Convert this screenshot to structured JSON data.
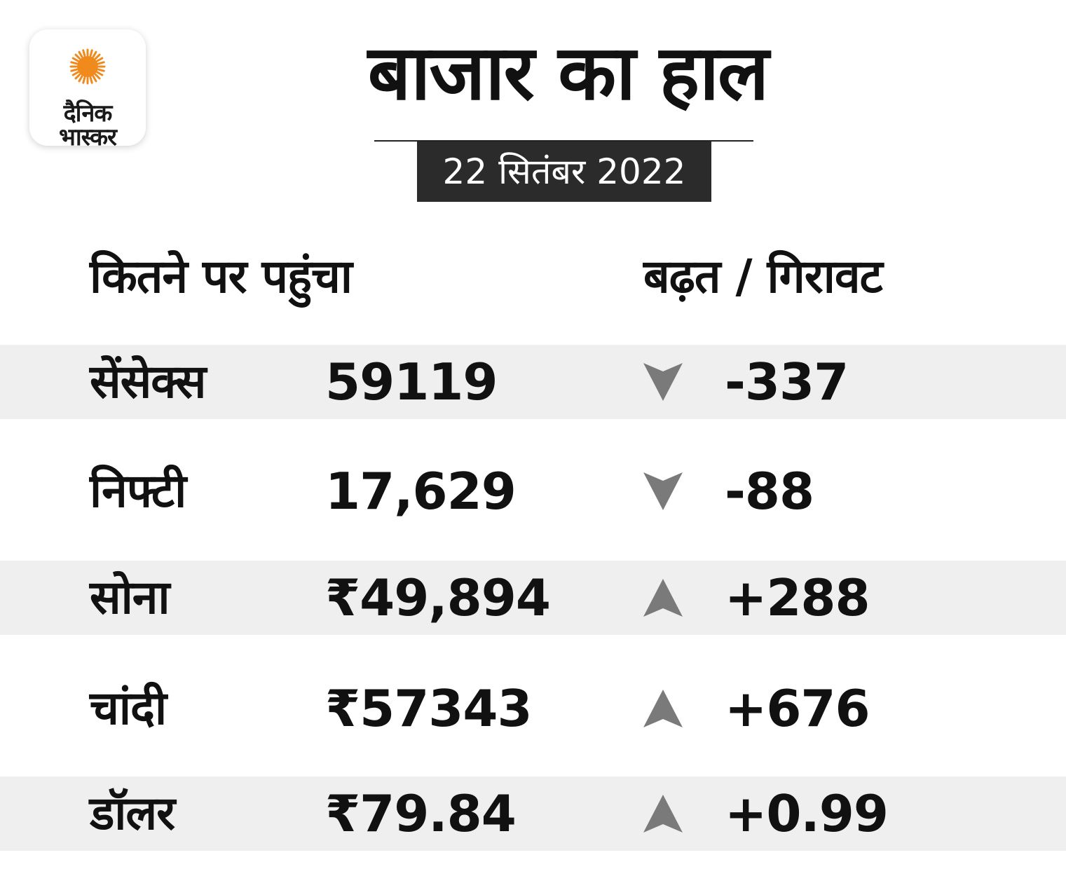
{
  "logo": {
    "line1": "दैनिक",
    "line2": "भास्कर",
    "sun_color": "#f08a1c"
  },
  "title": "बाजार का हाल",
  "date": "22 सितंबर 2022",
  "headers": {
    "left": "कितने पर पहुंचा",
    "right": "बढ़त / गिरावट"
  },
  "arrow_color": "#7a7a7a",
  "rows": [
    {
      "name": "सेंसेक्स",
      "value": "59119",
      "direction": "down",
      "change": "-337"
    },
    {
      "name": "निफ्टी",
      "value": "17,629",
      "direction": "down",
      "change": "-88"
    },
    {
      "name": "सोना",
      "value": "₹49,894",
      "direction": "up",
      "change": "+288"
    },
    {
      "name": "चांदी",
      "value": "₹57343",
      "direction": "up",
      "change": "+676"
    },
    {
      "name": "डॉलर",
      "value": "₹79.84",
      "direction": "up",
      "change": "+0.99"
    }
  ]
}
